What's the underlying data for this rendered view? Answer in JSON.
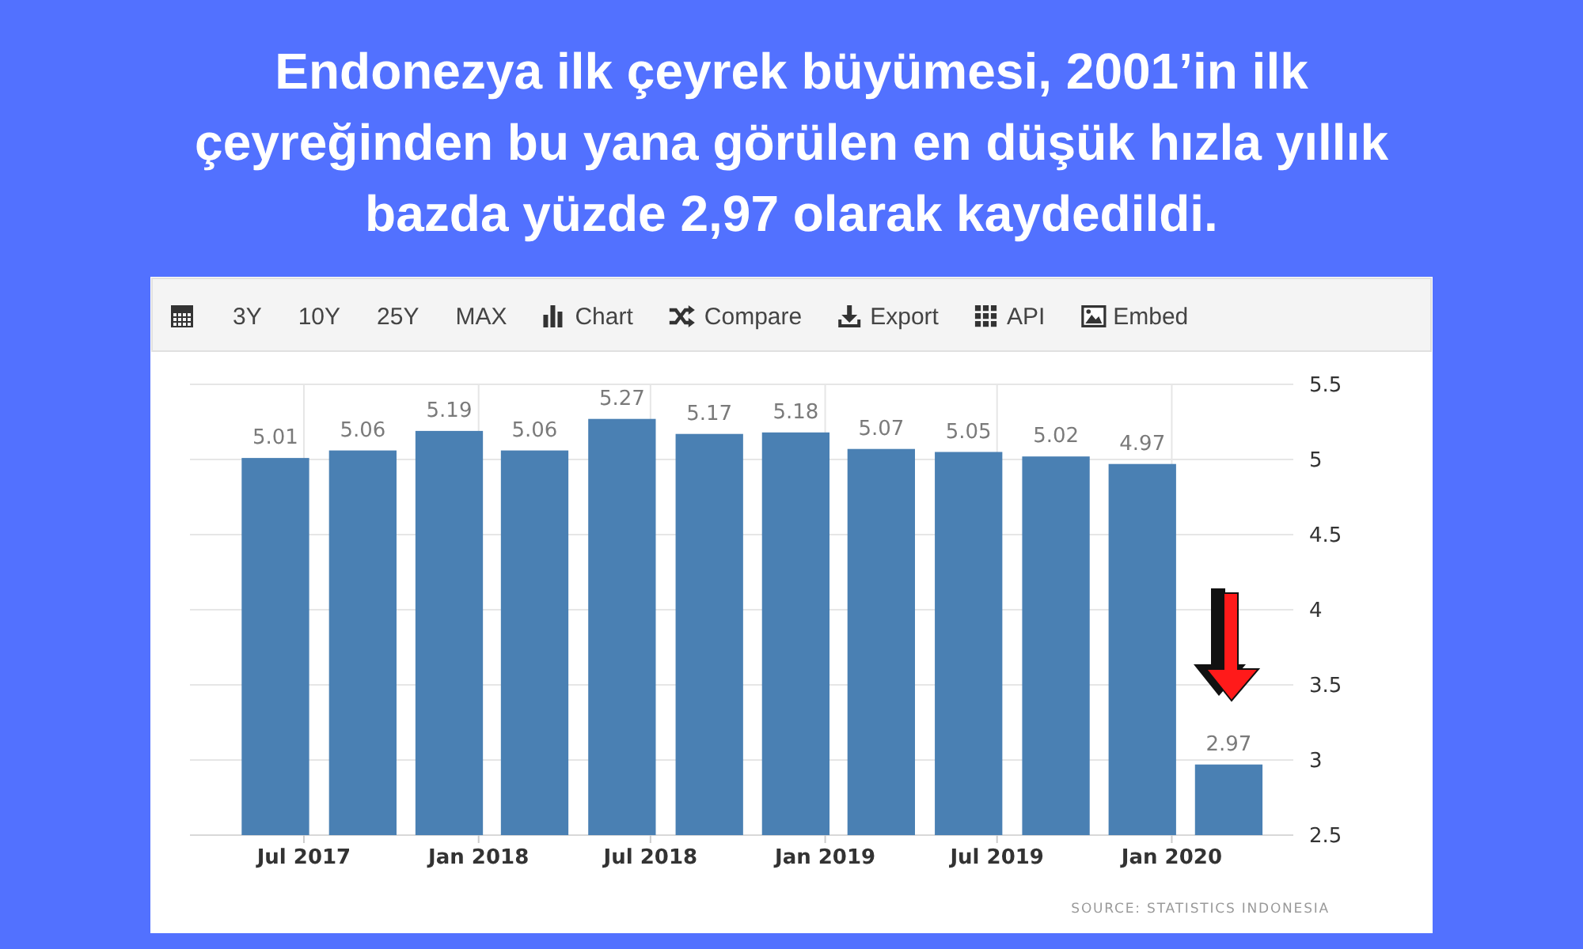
{
  "chart_data": {
    "type": "bar",
    "title": "Endonezya ilk çeyrek büyümesi, 2001’in ilk çeyreğinden bu yana görülen en düşük hızla yıllık bazda yüzde 2,97 olarak kaydedildi.",
    "x": [
      "2017-06",
      "2017-09",
      "2017-12",
      "2018-03",
      "2018-06",
      "2018-09",
      "2018-12",
      "2019-03",
      "2019-06",
      "2019-09",
      "2019-12",
      "2020-03"
    ],
    "values": [
      5.01,
      5.06,
      5.19,
      5.06,
      5.27,
      5.17,
      5.18,
      5.07,
      5.05,
      5.02,
      4.97,
      2.97
    ],
    "color": "#4a80b3",
    "xlim": [
      "2017-03-03",
      "2020-05-08"
    ],
    "xticks": [
      {
        "value": "2017-07",
        "label": "Jul 2017"
      },
      {
        "value": "2018-01",
        "label": "Jan 2018"
      },
      {
        "value": "2018-07",
        "label": "Jul 2018"
      },
      {
        "value": "2019-01",
        "label": "Jan 2019"
      },
      {
        "value": "2019-07",
        "label": "Jul 2019"
      },
      {
        "value": "2020-01",
        "label": "Jan 2020"
      }
    ],
    "ylim": [
      2.5,
      5.5
    ],
    "yticks": [
      2.5,
      3,
      3.5,
      4,
      4.5,
      5,
      5.5
    ],
    "grid": true,
    "data_labels": true,
    "annotations": [
      "3Y",
      "10Y",
      "25Y",
      "MAX",
      "Chart",
      "Compare",
      "Export",
      "API",
      "Embed",
      "SOURCE: STATISTICS INDONESIA"
    ]
  }
}
